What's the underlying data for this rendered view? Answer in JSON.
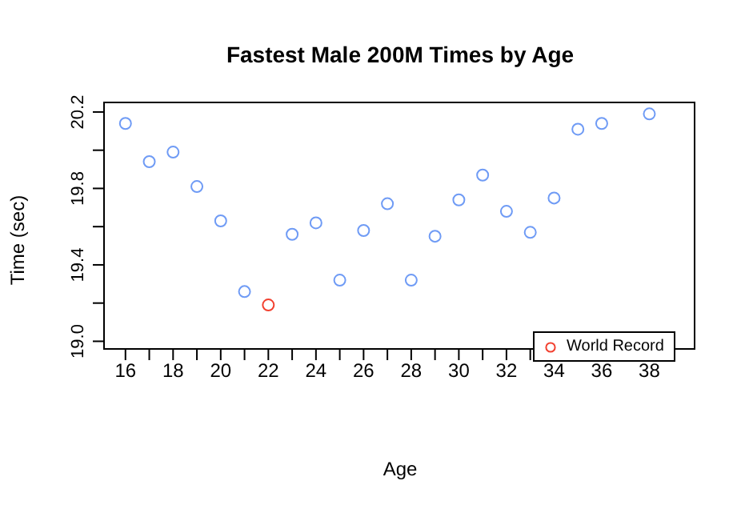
{
  "chart_data": {
    "type": "scatter",
    "title": "Fastest Male 200M Times by Age",
    "xlabel": "Age",
    "ylabel": "Time (sec)",
    "series": [
      {
        "color": "#6f9bf5",
        "x": [
          16,
          17,
          18,
          19,
          20,
          21,
          23,
          24,
          25,
          26,
          27,
          28,
          29,
          30,
          31,
          32,
          33,
          34,
          35,
          36,
          38
        ],
        "values": [
          20.14,
          19.94,
          19.99,
          19.81,
          19.63,
          19.26,
          19.56,
          19.62,
          19.32,
          19.58,
          19.72,
          19.32,
          19.55,
          19.74,
          19.87,
          19.68,
          19.57,
          19.75,
          20.11,
          20.14,
          20.19
        ]
      },
      {
        "name": "World Record",
        "color": "#f2402f",
        "x": [
          22
        ],
        "values": [
          19.19
        ]
      }
    ],
    "xlim": [
      15.1,
      39.9
    ],
    "xticks": [
      16,
      {
        "value": 17,
        "label": null
      },
      18,
      {
        "value": 19,
        "label": null
      },
      20,
      {
        "value": 21,
        "label": null
      },
      22,
      {
        "value": 23,
        "label": null
      },
      24,
      {
        "value": 25,
        "label": null
      },
      26,
      {
        "value": 27,
        "label": null
      },
      28,
      {
        "value": 29,
        "label": null
      },
      30,
      {
        "value": 31,
        "label": null
      },
      32,
      {
        "value": 33,
        "label": null
      },
      34,
      {
        "value": 35,
        "label": null
      },
      36,
      {
        "value": 37,
        "label": null
      },
      38,
      {
        "value": 39,
        "label": null
      }
    ],
    "ylim": [
      18.96,
      20.25
    ],
    "yticks": [
      {
        "value": 19.0,
        "label": "19.0"
      },
      {
        "value": 19.2,
        "label": null
      },
      19.4,
      {
        "value": 19.6,
        "label": null
      },
      19.8,
      {
        "value": 20.0,
        "label": null
      },
      20.2
    ],
    "legend": "bottom right",
    "marker": "circle",
    "grid": false
  }
}
